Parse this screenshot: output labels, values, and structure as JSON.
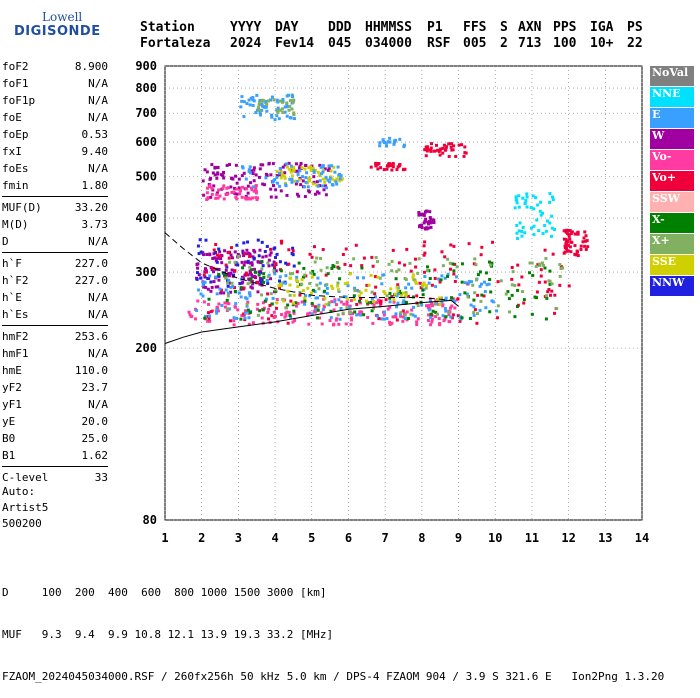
{
  "logo": {
    "brand": "Lowell",
    "product": "DIGISONDE"
  },
  "header": {
    "labels": [
      "Station",
      "YYYY",
      "DAY",
      "DDD",
      "HHMMSS",
      "P1",
      "FFS",
      "S",
      "AXN",
      "PPS",
      "IGA",
      "PS"
    ],
    "values": [
      "Fortaleza",
      "2024",
      "Fev14",
      "045",
      "034000",
      "RSF",
      "005",
      "2",
      "713",
      "100",
      "10+",
      "22"
    ]
  },
  "params": {
    "group1": [
      {
        "name": "foF2",
        "value": "8.900"
      },
      {
        "name": "foF1",
        "value": "N/A"
      },
      {
        "name": "foF1p",
        "value": "N/A"
      },
      {
        "name": "foE",
        "value": "N/A"
      },
      {
        "name": "foEp",
        "value": "0.53"
      },
      {
        "name": "fxI",
        "value": "9.40"
      },
      {
        "name": "foEs",
        "value": "N/A"
      },
      {
        "name": "fmin",
        "value": "1.80"
      }
    ],
    "group2": [
      {
        "name": "MUF(D)",
        "value": "33.20"
      },
      {
        "name": "M(D)",
        "value": "3.73"
      },
      {
        "name": "D",
        "value": "N/A"
      }
    ],
    "group3": [
      {
        "name": "h`F",
        "value": "227.0"
      },
      {
        "name": "h`F2",
        "value": "227.0"
      },
      {
        "name": "h`E",
        "value": "N/A"
      },
      {
        "name": "h`Es",
        "value": "N/A"
      }
    ],
    "group4": [
      {
        "name": "hmF2",
        "value": "253.6"
      },
      {
        "name": "hmF1",
        "value": "N/A"
      },
      {
        "name": "hmE",
        "value": "110.0"
      },
      {
        "name": "yF2",
        "value": "23.7"
      },
      {
        "name": "yF1",
        "value": "N/A"
      },
      {
        "name": "yE",
        "value": "20.0"
      },
      {
        "name": "B0",
        "value": "25.0"
      },
      {
        "name": "B1",
        "value": "1.62"
      }
    ],
    "group5": [
      {
        "name": "C-level",
        "value": "33"
      }
    ]
  },
  "artist": {
    "line1": "Auto:",
    "line2": "Artist5",
    "line3": "500200"
  },
  "legend": [
    {
      "label": "NoVal",
      "color": "#808080"
    },
    {
      "label": "NNE",
      "color": "#00e0ff"
    },
    {
      "label": "E",
      "color": "#3aa0ff"
    },
    {
      "label": "W",
      "color": "#a000a0"
    },
    {
      "label": "Vo-",
      "color": "#ff3aa0"
    },
    {
      "label": "Vo+",
      "color": "#f0003a"
    },
    {
      "label": "SSW",
      "color": "#ffb0b0"
    },
    {
      "label": "X-",
      "color": "#008000"
    },
    {
      "label": "X+",
      "color": "#80b060"
    },
    {
      "label": "SSE",
      "color": "#d0d000"
    },
    {
      "label": "NNW",
      "color": "#2020e0"
    }
  ],
  "bottom": {
    "line1": "D     100  200  400  600  800 1000 1500 3000 [km]",
    "line2": "MUF   9.3  9.4  9.9 10.8 12.1 13.9 19.3 33.2 [MHz]",
    "line3": "FZAOM_2024045034000.RSF / 260fx256h 50 kHz 5.0 km / DPS-4 FZAOM 904 / 3.9 S 321.6 E   Ion2Png 1.3.20"
  },
  "chart_data": {
    "type": "scatter",
    "xlim": [
      1,
      14
    ],
    "ylim": [
      80,
      900
    ],
    "y_scale": "log",
    "xticks": [
      1,
      2,
      3,
      4,
      5,
      6,
      7,
      8,
      9,
      10,
      11,
      12,
      13,
      14
    ],
    "yticks": [
      80,
      200,
      300,
      400,
      500,
      600,
      700,
      800,
      900
    ],
    "grid": true,
    "clusters": [
      {
        "color": "#a000a0",
        "x": [
          1.8,
          4.0
        ],
        "y": [
          270,
          340
        ],
        "n": 140
      },
      {
        "color": "#2020e0",
        "x": [
          1.8,
          4.5
        ],
        "y": [
          280,
          360
        ],
        "n": 60
      },
      {
        "color": "#ff3aa0",
        "x": [
          1.6,
          9.0
        ],
        "y": [
          228,
          262
        ],
        "n": 180
      },
      {
        "color": "#f0003a",
        "x": [
          2.0,
          12.2
        ],
        "y": [
          230,
          360
        ],
        "n": 160
      },
      {
        "color": "#3aa0ff",
        "x": [
          1.7,
          10.0
        ],
        "y": [
          235,
          300
        ],
        "n": 160
      },
      {
        "color": "#008000",
        "x": [
          2.0,
          11.5
        ],
        "y": [
          235,
          320
        ],
        "n": 120
      },
      {
        "color": "#80b060",
        "x": [
          2.5,
          12.0
        ],
        "y": [
          240,
          330
        ],
        "n": 120
      },
      {
        "color": "#d0d000",
        "x": [
          4.0,
          8.5
        ],
        "y": [
          250,
          300
        ],
        "n": 60
      },
      {
        "color": "#a000a0",
        "x": [
          2.0,
          5.5
        ],
        "y": [
          450,
          540
        ],
        "n": 120
      },
      {
        "color": "#ff3aa0",
        "x": [
          2.0,
          3.5
        ],
        "y": [
          445,
          480
        ],
        "n": 50
      },
      {
        "color": "#d0d000",
        "x": [
          4.0,
          5.8
        ],
        "y": [
          480,
          530
        ],
        "n": 50
      },
      {
        "color": "#3aa0ff",
        "x": [
          3.0,
          5.8
        ],
        "y": [
          470,
          540
        ],
        "n": 60
      },
      {
        "color": "#3aa0ff",
        "x": [
          3.0,
          4.5
        ],
        "y": [
          680,
          780
        ],
        "n": 60
      },
      {
        "color": "#80b060",
        "x": [
          3.5,
          4.5
        ],
        "y": [
          700,
          760
        ],
        "n": 30
      },
      {
        "color": "#f0003a",
        "x": [
          6.5,
          7.5
        ],
        "y": [
          520,
          540
        ],
        "n": 30
      },
      {
        "color": "#3aa0ff",
        "x": [
          6.8,
          7.5
        ],
        "y": [
          590,
          620
        ],
        "n": 20
      },
      {
        "color": "#f0003a",
        "x": [
          8.0,
          9.2
        ],
        "y": [
          560,
          600
        ],
        "n": 40
      },
      {
        "color": "#a000a0",
        "x": [
          7.8,
          8.3
        ],
        "y": [
          380,
          420
        ],
        "n": 40
      },
      {
        "color": "#00e0ff",
        "x": [
          10.5,
          11.6
        ],
        "y": [
          360,
          460
        ],
        "n": 50
      },
      {
        "color": "#f0003a",
        "x": [
          11.8,
          12.5
        ],
        "y": [
          330,
          380
        ],
        "n": 50
      }
    ],
    "trace": {
      "x": [
        1.0,
        1.5,
        2.0,
        3.0,
        4.0,
        5.0,
        6.0,
        7.0,
        8.0,
        8.8,
        9.0
      ],
      "y": [
        205,
        212,
        218,
        224,
        230,
        238,
        246,
        250,
        255,
        258,
        250
      ]
    },
    "trace_upper": {
      "x": [
        1.0,
        1.5,
        2.0,
        3.0,
        4.0,
        5.0,
        6.0,
        7.0,
        8.0,
        8.8
      ],
      "y": [
        370,
        340,
        315,
        290,
        275,
        265,
        262,
        262,
        262,
        258
      ]
    }
  }
}
